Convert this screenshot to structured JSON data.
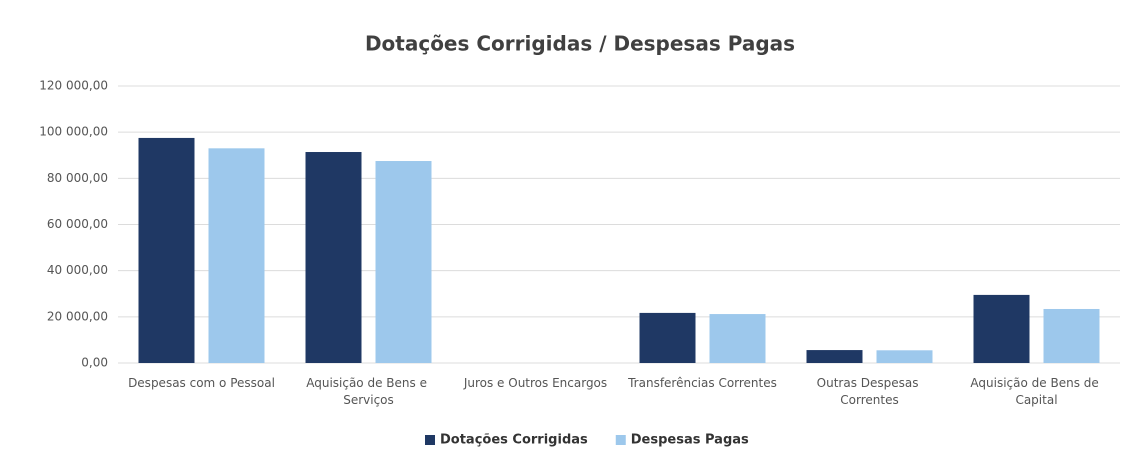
{
  "chart_data": {
    "type": "bar",
    "title": "Dotações Corrigidas / Despesas Pagas",
    "categories": [
      "Despesas com o Pessoal",
      "Aquisição de Bens e Serviços",
      "Juros e Outros Encargos",
      "Transferências Correntes",
      "Outras Despesas Correntes",
      "Aquisição de Bens de Capital"
    ],
    "series": [
      {
        "name": "Dotações Corrigidas",
        "color": "#1f3864",
        "values": [
          97500,
          91400,
          0,
          21700,
          5600,
          29500
        ]
      },
      {
        "name": "Despesas Pagas",
        "color": "#9dc8ec",
        "values": [
          93000,
          87500,
          0,
          21200,
          5500,
          23400
        ]
      }
    ],
    "ylim": [
      0,
      120000
    ],
    "yticks": [
      {
        "value": 0,
        "label": "0,00"
      },
      {
        "value": 20000,
        "label": "20 000,00"
      },
      {
        "value": 40000,
        "label": "40 000,00"
      },
      {
        "value": 60000,
        "label": "60 000,00"
      },
      {
        "value": 80000,
        "label": "80 000,00"
      },
      {
        "value": 100000,
        "label": "100 000,00"
      },
      {
        "value": 120000,
        "label": "120 000,00"
      }
    ],
    "grid": true,
    "legend": "bottom"
  }
}
